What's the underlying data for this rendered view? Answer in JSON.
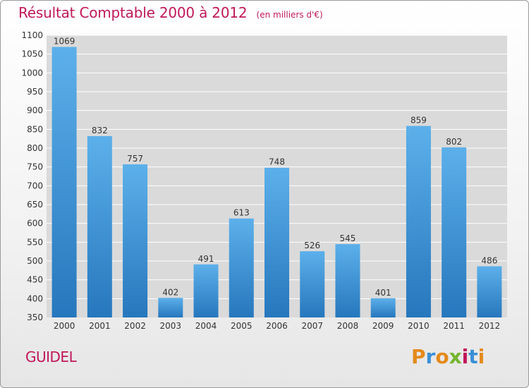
{
  "header": {
    "title": "Résultat Comptable 2000 à 2012",
    "subtitle": "(en milliers d'€)"
  },
  "footer": {
    "place": "GUIDEL",
    "brand": {
      "text": "Proxiti",
      "letters": [
        "P",
        "r",
        "o",
        "x",
        "i",
        "t",
        "i"
      ],
      "colors": [
        "#e48a1a",
        "#3a8fd6",
        "#e48a1a",
        "#74b52e",
        "#c0185a",
        "#3a8fd6",
        "#e48a1a"
      ]
    }
  },
  "colors": {
    "accent": "#c0185a",
    "bar_light": "#5cb0ea",
    "bar_dark": "#2677bd",
    "grid": "#ffffff",
    "axis_text": "#333333"
  },
  "chart_data": {
    "type": "bar",
    "title": "Résultat Comptable 2000 à 2012",
    "subtitle": "(en milliers d'€)",
    "xlabel": "",
    "ylabel": "",
    "categories": [
      "2000",
      "2001",
      "2002",
      "2003",
      "2004",
      "2005",
      "2006",
      "2007",
      "2008",
      "2009",
      "2010",
      "2011",
      "2012"
    ],
    "values": [
      1069,
      832,
      757,
      402,
      491,
      613,
      748,
      526,
      545,
      401,
      859,
      802,
      486
    ],
    "ylim": [
      350,
      1100
    ],
    "yticks": [
      350,
      400,
      450,
      500,
      550,
      600,
      650,
      700,
      750,
      800,
      850,
      900,
      950,
      1000,
      1050,
      1100
    ],
    "grid": true,
    "data_labels": true
  }
}
